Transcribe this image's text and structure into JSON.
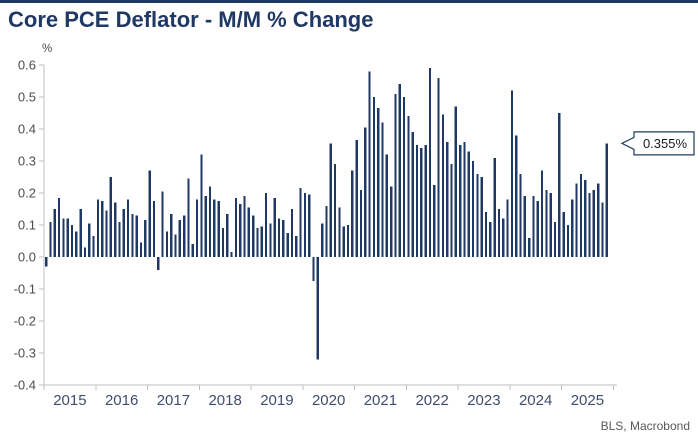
{
  "title": "Core PCE Deflator - M/M % Change",
  "source": "BLS, Macrobond",
  "callout": {
    "label": "0.355%"
  },
  "colors": {
    "accent_top_bar": "#1f3864",
    "title": "#1f3864",
    "bar": "#1f3864",
    "axis_line": "#bfbfbf",
    "ytick_label": "#4d4d4d",
    "year_label": "#3f4d6e",
    "unit_label": "#4d4d4d",
    "source_label": "#595959",
    "callout_border": "#1f3864",
    "callout_fill": "#ffffff",
    "callout_text": "#1a1a1a",
    "background": "#ffffff"
  },
  "chart_data": {
    "type": "bar",
    "title": "Core PCE Deflator - M/M % Change",
    "xlabel": "",
    "ylabel": "%",
    "ylim": [
      -0.4,
      0.6
    ],
    "ytick_step": 0.1,
    "yticks": [
      "0.6",
      "0.5",
      "0.4",
      "0.3",
      "0.2",
      "0.1",
      "0.0",
      "-0.1",
      "-0.2",
      "-0.3",
      "-0.4"
    ],
    "x_year_labels": [
      "2015",
      "2016",
      "2017",
      "2018",
      "2019",
      "2020",
      "2021",
      "2022",
      "2023",
      "2024",
      "2025"
    ],
    "frequency": "monthly",
    "start_month": "2015-01",
    "end_month": "2025-11",
    "grid": "off",
    "legend": "none",
    "last_value_label": "0.355%",
    "values": [
      -0.03,
      0.11,
      0.15,
      0.185,
      0.12,
      0.12,
      0.1,
      0.08,
      0.15,
      0.03,
      0.105,
      0.065,
      0.18,
      0.175,
      0.145,
      0.25,
      0.17,
      0.11,
      0.15,
      0.18,
      0.135,
      0.13,
      0.045,
      0.115,
      0.27,
      0.175,
      -0.04,
      0.205,
      0.08,
      0.135,
      0.07,
      0.115,
      0.13,
      0.245,
      0.04,
      0.18,
      0.32,
      0.19,
      0.22,
      0.18,
      0.175,
      0.09,
      0.135,
      0.015,
      0.185,
      0.165,
      0.19,
      0.155,
      0.13,
      0.09,
      0.095,
      0.2,
      0.105,
      0.185,
      0.12,
      0.115,
      0.075,
      0.15,
      0.065,
      0.215,
      0.2,
      0.195,
      -0.075,
      -0.32,
      0.105,
      0.16,
      0.355,
      0.29,
      0.155,
      0.095,
      0.1,
      0.27,
      0.365,
      0.21,
      0.405,
      0.58,
      0.5,
      0.465,
      0.42,
      0.32,
      0.22,
      0.51,
      0.54,
      0.5,
      0.44,
      0.39,
      0.35,
      0.34,
      0.35,
      0.59,
      0.225,
      0.56,
      0.445,
      0.36,
      0.29,
      0.47,
      0.35,
      0.36,
      0.33,
      0.3,
      0.26,
      0.25,
      0.14,
      0.11,
      0.31,
      0.15,
      0.12,
      0.18,
      0.52,
      0.38,
      0.26,
      0.19,
      0.06,
      0.19,
      0.175,
      0.27,
      0.21,
      0.2,
      0.11,
      0.45,
      0.14,
      0.1,
      0.18,
      0.23,
      0.26,
      0.24,
      0.2,
      0.21,
      0.23,
      0.17,
      0.355
    ]
  }
}
